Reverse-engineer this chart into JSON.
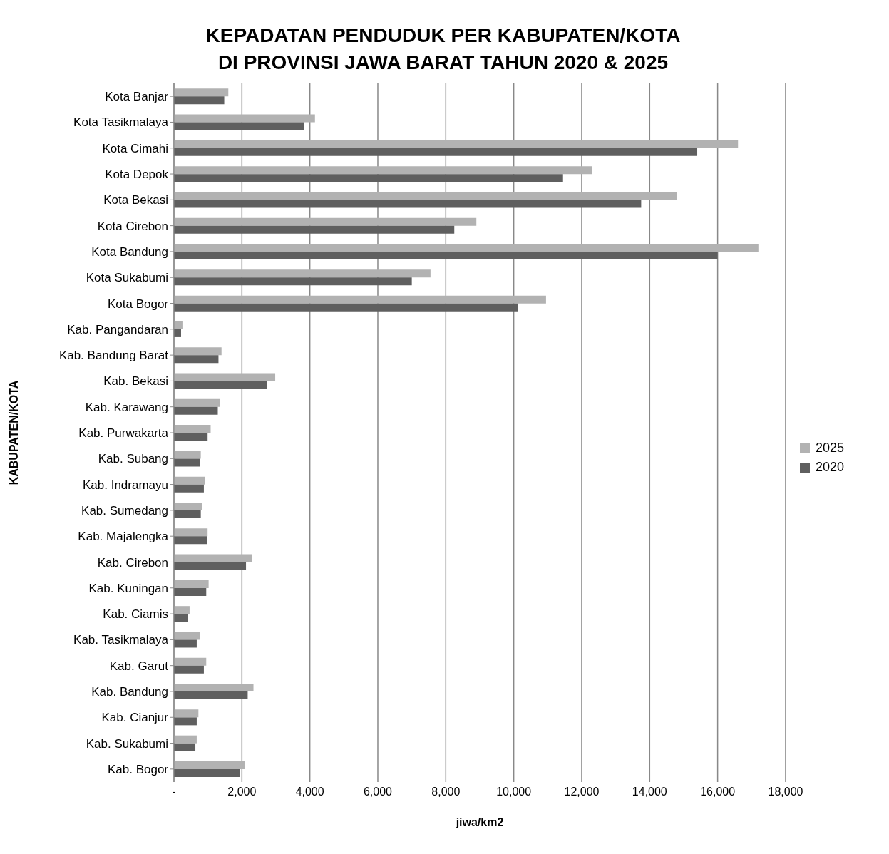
{
  "chart_data": {
    "type": "bar",
    "orientation": "horizontal",
    "title": "KEPADATAN PENDUDUK PER KABUPATEN/KOTA\nDI PROVINSI JAWA BARAT TAHUN 2020 & 2025",
    "xlabel": "jiwa/km2",
    "ylabel": "KABUPATEN/KOTA",
    "categories": [
      "Kota Banjar",
      "Kota Tasikmalaya",
      "Kota Cimahi",
      "Kota Depok",
      "Kota Bekasi",
      "Kota Cirebon",
      "Kota Bandung",
      "Kota Sukabumi",
      "Kota Bogor",
      "Kab. Pangandaran",
      "Kab. Bandung Barat",
      "Kab. Bekasi",
      "Kab. Karawang",
      "Kab. Purwakarta",
      "Kab. Subang",
      "Kab. Indramayu",
      "Kab. Sumedang",
      "Kab. Majalengka",
      "Kab. Cirebon",
      "Kab. Kuningan",
      "Kab. Ciamis",
      "Kab. Tasikmalaya",
      "Kab. Garut",
      "Kab. Bandung",
      "Kab. Cianjur",
      "Kab. Sukabumi",
      "Kab. Bogor"
    ],
    "series": [
      {
        "name": "2025",
        "color": "#b2b2b2",
        "values": [
          1600,
          4150,
          16600,
          12300,
          14800,
          8900,
          17200,
          7550,
          10950,
          250,
          1400,
          2980,
          1350,
          1080,
          790,
          920,
          830,
          990,
          2290,
          1020,
          460,
          760,
          950,
          2340,
          720,
          670,
          2090
        ]
      },
      {
        "name": "2020",
        "color": "#5f5f5f",
        "values": [
          1480,
          3830,
          15400,
          11450,
          13750,
          8250,
          16000,
          7000,
          10130,
          210,
          1310,
          2730,
          1290,
          990,
          760,
          880,
          790,
          970,
          2120,
          950,
          420,
          670,
          880,
          2170,
          670,
          630,
          1950
        ]
      }
    ],
    "xlim": [
      0,
      18000
    ],
    "xticks": [
      {
        "value": 0,
        "label": "-"
      },
      {
        "value": 2000,
        "label": "2,000"
      },
      {
        "value": 4000,
        "label": "4,000"
      },
      {
        "value": 6000,
        "label": "6,000"
      },
      {
        "value": 8000,
        "label": "8,000"
      },
      {
        "value": 10000,
        "label": "10,000"
      },
      {
        "value": 12000,
        "label": "12,000"
      },
      {
        "value": 14000,
        "label": "14,000"
      },
      {
        "value": 16000,
        "label": "16,000"
      },
      {
        "value": 18000,
        "label": "18,000"
      }
    ],
    "grid": "x",
    "legend": "right"
  }
}
